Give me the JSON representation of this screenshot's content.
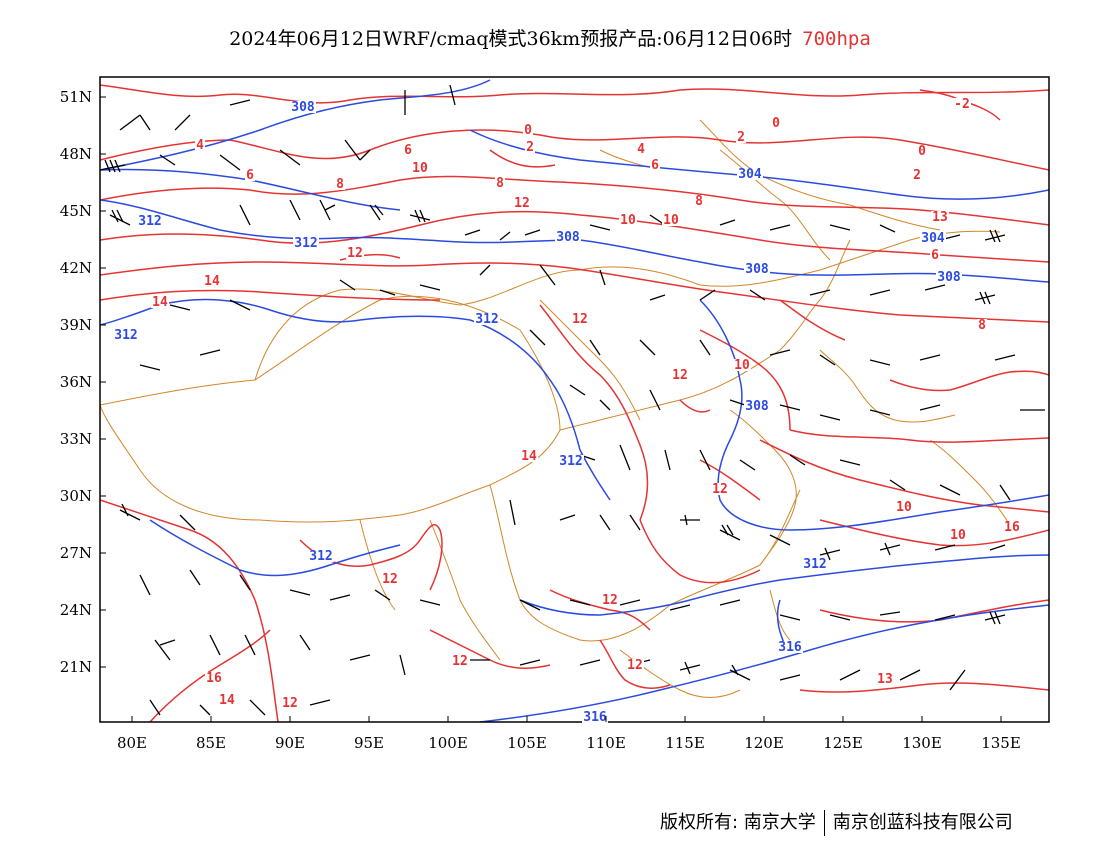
{
  "title": {
    "main": "2024年06月12日WRF/cmaq模式36km预报产品:06月12日06时",
    "level": "700hpa"
  },
  "axes": {
    "lat_labels": [
      "51N",
      "48N",
      "45N",
      "42N",
      "39N",
      "36N",
      "33N",
      "30N",
      "27N",
      "24N",
      "21N"
    ],
    "lon_labels": [
      "80E",
      "85E",
      "90E",
      "95E",
      "100E",
      "105E",
      "110E",
      "115E",
      "120E",
      "125E",
      "130E",
      "135E"
    ]
  },
  "colors": {
    "temperature": "#e53333",
    "geopotential": "#2b4ae0",
    "border": "#d2872a",
    "wind": "#000000"
  },
  "contour_labels": {
    "temperature": [
      "-2",
      "0",
      "0",
      "0",
      "2",
      "2",
      "2",
      "4",
      "4",
      "6",
      "6",
      "6",
      "6",
      "8",
      "8",
      "8",
      "8",
      "10",
      "10",
      "10",
      "10",
      "10",
      "10",
      "12",
      "12",
      "12",
      "12",
      "12",
      "12",
      "12",
      "12",
      "12",
      "12",
      "13",
      "13",
      "14",
      "14",
      "14",
      "14",
      "16",
      "16"
    ],
    "geopotential": [
      "308",
      "308",
      "308",
      "308",
      "308",
      "304",
      "304",
      "312",
      "312",
      "312",
      "312",
      "312",
      "312",
      "312",
      "316",
      "316"
    ]
  },
  "footer": {
    "left": "版权所有: 南京大学",
    "right": "南京创蓝科技有限公司"
  }
}
